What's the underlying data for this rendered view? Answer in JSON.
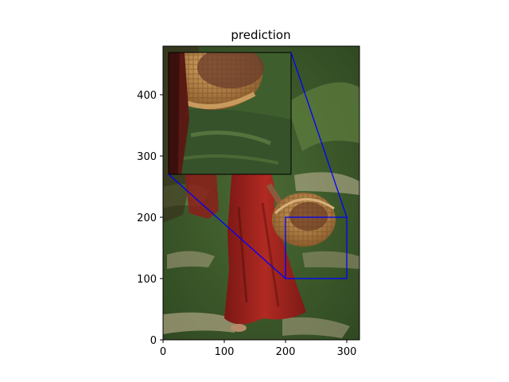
{
  "chart_data": {
    "type": "image",
    "title": "prediction",
    "xlabel": "",
    "ylabel": "",
    "xlim": [
      0,
      320
    ],
    "ylim": [
      0,
      480
    ],
    "xticks": [
      "0",
      "100",
      "200",
      "300"
    ],
    "yticks": [
      "0",
      "100",
      "200",
      "300",
      "400"
    ],
    "grid": false,
    "zoom_region": {
      "x": [
        200,
        300
      ],
      "y": [
        100,
        200
      ]
    },
    "inset_region": {
      "x": [
        10,
        210
      ],
      "y": [
        270,
        470
      ]
    },
    "colors": {
      "zoom_box": "#0000ff",
      "axis": "#000000",
      "grass_dark": "#2f4a22",
      "grass_light": "#5c7a3d",
      "dress": "#a3241f",
      "basket": "#b5854a"
    }
  }
}
